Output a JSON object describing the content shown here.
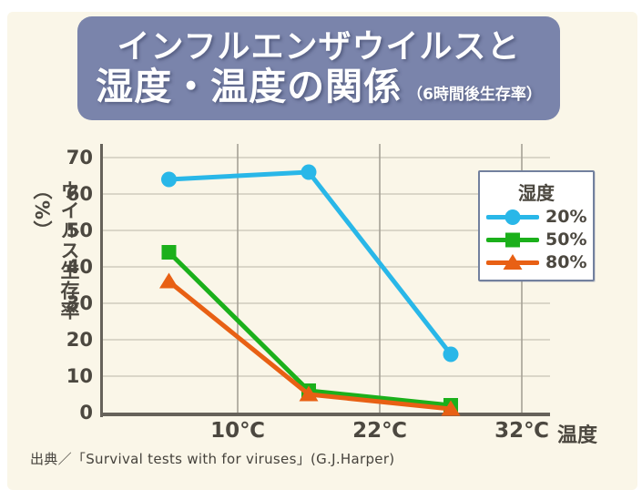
{
  "banner": {
    "title_line1": "インフルエンザウイルスと",
    "title_line2": "湿度・温度の関係",
    "subtitle": "（6時間後生存率）"
  },
  "colors": {
    "banner_bg": "#7a84ab",
    "panel_bg": "#faf6e8",
    "legend_border": "#72809e",
    "axis": "#66625a",
    "grid_horizontal": "#cfcbbd",
    "grid_vertical": "#a5a196",
    "text": "#4c4840"
  },
  "chart_data": {
    "type": "line",
    "title": "インフルエンザウイルスと湿度・温度の関係（6時間後生存率）",
    "xlabel": "温度",
    "ylabel": "ウイルス生存率（%）",
    "x_tick_labels": [
      "10℃",
      "22℃",
      "32℃"
    ],
    "yticks": [
      70,
      60,
      50,
      40,
      30,
      20,
      10,
      0
    ],
    "ylim": [
      0,
      70
    ],
    "grid": true,
    "legend_title": "湿度",
    "legend_position": "upper right",
    "series": [
      {
        "name": "20%",
        "marker": "circle",
        "color": "#29b7e8",
        "values": [
          64,
          66,
          16
        ]
      },
      {
        "name": "50%",
        "marker": "square",
        "color": "#1bb01b",
        "values": [
          44,
          6,
          2
        ]
      },
      {
        "name": "80%",
        "marker": "triangle",
        "color": "#e86014",
        "values": [
          36,
          5,
          1
        ]
      }
    ]
  },
  "source": "出典／「Survival tests with for viruses」(G.J.Harper)"
}
